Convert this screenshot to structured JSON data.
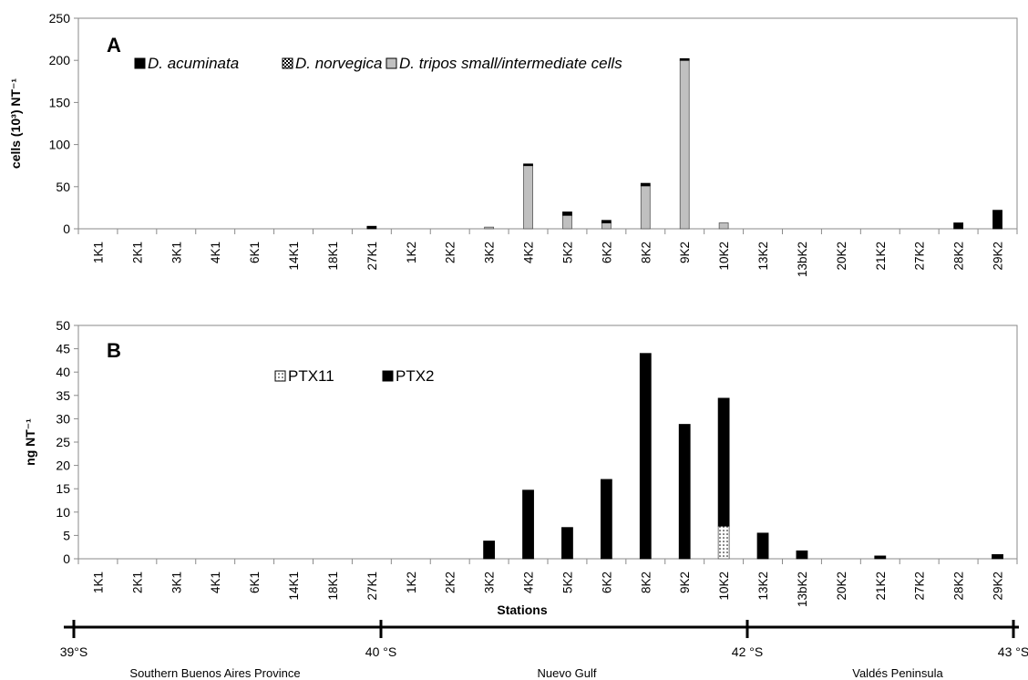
{
  "chart_data": [
    {
      "type": "bar",
      "stacked": true,
      "panel_label": "A",
      "ylabel": "cells (10³) NT⁻¹",
      "xlabel": "",
      "ylim": [
        0,
        250
      ],
      "yticks": [
        0,
        50,
        100,
        150,
        200,
        250
      ],
      "grid": false,
      "legend_position": "top-left",
      "categories": [
        "1K1",
        "2K1",
        "3K1",
        "4K1",
        "6K1",
        "14K1",
        "18K1",
        "27K1",
        "1K2",
        "2K2",
        "3K2",
        "4K2",
        "5K2",
        "6K2",
        "8K2",
        "9K2",
        "10K2",
        "13K2",
        "13bK2",
        "20K2",
        "21K2",
        "27K2",
        "28K2",
        "29K2"
      ],
      "series": [
        {
          "name": "D. tripos small/intermediate cells",
          "color": "#c0c0c0",
          "pattern": "solid",
          "values": [
            0,
            0,
            0,
            0,
            0,
            0,
            0,
            0,
            0,
            0,
            2,
            75,
            16,
            7,
            51,
            200,
            7,
            0,
            0,
            0,
            0,
            0,
            0,
            0
          ]
        },
        {
          "name": "D. norvegica",
          "color": "#ffffff",
          "pattern": "checker",
          "values": [
            0,
            0,
            0,
            0,
            0,
            0,
            0,
            0,
            0,
            0,
            0,
            0,
            0,
            0,
            0,
            0,
            0,
            0,
            0,
            0,
            0,
            0,
            0,
            0
          ]
        },
        {
          "name": "D. acuminata",
          "color": "#000000",
          "pattern": "solid",
          "values": [
            0,
            0,
            0,
            0,
            0,
            0,
            0,
            3,
            0,
            0,
            0,
            2,
            4,
            3,
            3,
            2,
            0,
            0,
            0,
            0,
            0,
            0,
            7,
            22
          ]
        }
      ]
    },
    {
      "type": "bar",
      "stacked": true,
      "panel_label": "B",
      "ylabel": "ng NT⁻¹",
      "xlabel": "Stations",
      "ylim": [
        0,
        50
      ],
      "yticks": [
        0,
        5,
        10,
        15,
        20,
        25,
        30,
        35,
        40,
        45,
        50
      ],
      "grid": false,
      "legend_position": "top-left",
      "categories": [
        "1K1",
        "2K1",
        "3K1",
        "4K1",
        "6K1",
        "14K1",
        "18K1",
        "27K1",
        "1K2",
        "2K2",
        "3K2",
        "4K2",
        "5K2",
        "6K2",
        "8K2",
        "9K2",
        "10K2",
        "13K2",
        "13bK2",
        "20K2",
        "21K2",
        "27K2",
        "28K2",
        "29K2"
      ],
      "series": [
        {
          "name": "PTX11",
          "color": "#ffffff",
          "pattern": "dotted",
          "values": [
            0,
            0,
            0,
            0,
            0,
            0,
            0,
            0,
            0,
            0,
            0,
            0,
            0,
            0,
            0,
            0,
            7,
            0,
            0,
            0,
            0,
            0,
            0,
            0
          ]
        },
        {
          "name": "PTX2",
          "color": "#000000",
          "pattern": "solid",
          "values": [
            0,
            0,
            0,
            0,
            0,
            0,
            0,
            0,
            0,
            0,
            3.8,
            14.7,
            6.7,
            17,
            44,
            28.8,
            27.4,
            5.5,
            1.7,
            0,
            0.6,
            0,
            0,
            0.9
          ]
        }
      ]
    }
  ],
  "latitude_axis": {
    "ticks": [
      {
        "label": "39°S",
        "lat": 39
      },
      {
        "label": "40 °S",
        "lat": 40
      },
      {
        "label": "42 °S",
        "lat": 42
      },
      {
        "label": "43 °S",
        "lat": 43
      }
    ],
    "regions": [
      "Southern Buenos Aires Province",
      "Nuevo Gulf",
      "Valdés Peninsula"
    ]
  }
}
